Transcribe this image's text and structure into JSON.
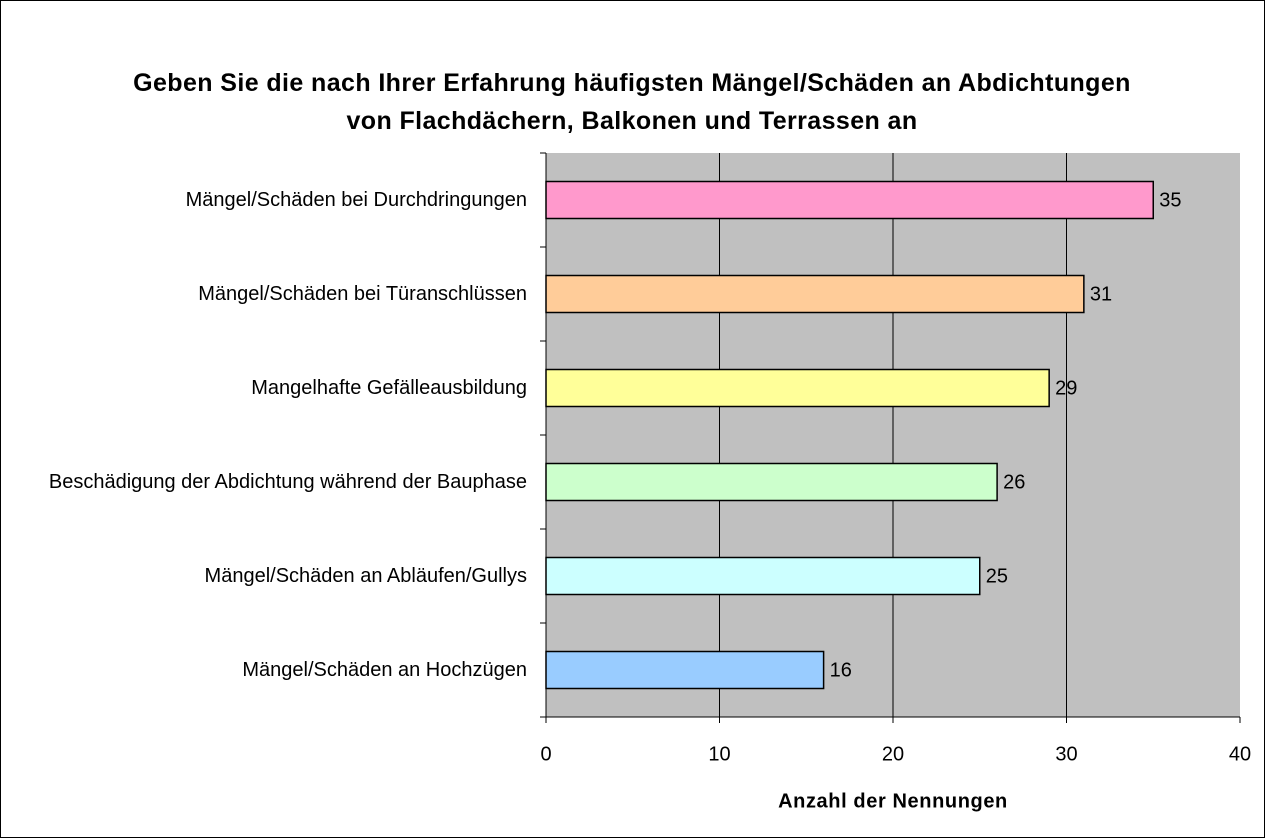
{
  "chart_data": {
    "type": "bar",
    "orientation": "horizontal",
    "title": "Geben Sie die nach Ihrer Erfahrung häufigsten Mängel/Schäden an Abdichtungen von Flachdächern, Balkonen und Terrassen an",
    "categories": [
      "Mängel/Schäden bei Durchdringungen",
      "Mängel/Schäden bei Türanschlüssen",
      "Mangelhafte Gefälleausbildung",
      "Beschädigung der Abdichtung während der Bauphase",
      "Mängel/Schäden an Abläufen/Gullys",
      "Mängel/Schäden an Hochzügen"
    ],
    "values": [
      35,
      31,
      29,
      26,
      25,
      16
    ],
    "colors": [
      "#ff99cc",
      "#ffcc99",
      "#ffff99",
      "#ccffcc",
      "#ccffff",
      "#99ccff"
    ],
    "xlabel": "Anzahl der Nennungen",
    "xlim": [
      0,
      40
    ],
    "xticks": [
      0,
      10,
      20,
      30,
      40
    ],
    "grid": true,
    "plot_background": "#c0c0c0"
  }
}
